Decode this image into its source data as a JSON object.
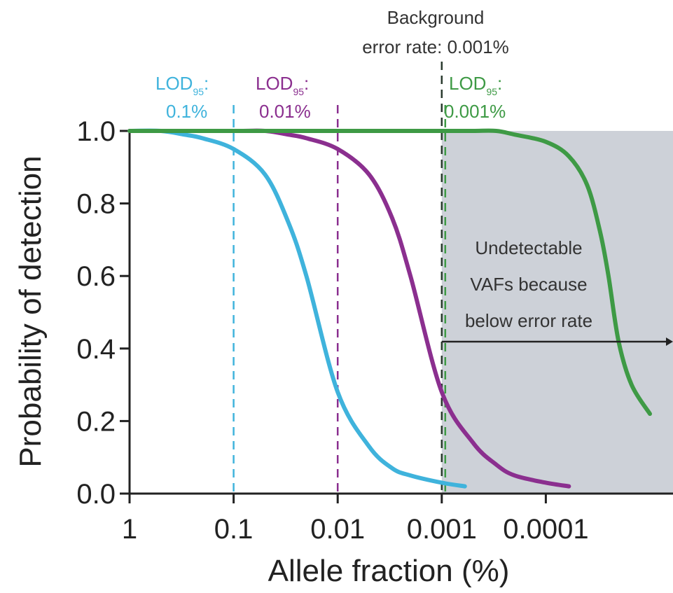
{
  "chart_data": {
    "type": "line",
    "xlabel": "Allele fraction (%)",
    "ylabel": "Probability of detection",
    "x_scale": "log-reversed",
    "x_ticks": [
      1,
      0.1,
      0.01,
      0.001,
      0.0001
    ],
    "x_tick_labels": [
      "1",
      "0.1",
      "0.01",
      "0.001",
      "0.0001"
    ],
    "xlim": [
      1,
      1e-05
    ],
    "y_ticks": [
      0,
      0.2,
      0.4,
      0.6,
      0.8,
      1.0
    ],
    "y_tick_labels": [
      "0.0",
      "0.2",
      "0.4",
      "0.6",
      "0.8",
      "1.0"
    ],
    "ylim": [
      0,
      1
    ],
    "grid": false,
    "series": [
      {
        "color": "#3FB3DC",
        "lod": 0.1,
        "x": [
          1,
          0.5,
          0.3,
          0.2,
          0.1,
          0.05,
          0.03,
          0.02,
          0.01,
          0.005,
          0.003,
          0.002,
          0.001,
          0.0006
        ],
        "y": [
          1.0,
          1.0,
          0.99,
          0.98,
          0.95,
          0.88,
          0.75,
          0.6,
          0.28,
          0.13,
          0.07,
          0.05,
          0.03,
          0.02
        ]
      },
      {
        "color": "#8B2F8F",
        "lod": 0.01,
        "x": [
          1,
          0.1,
          0.05,
          0.03,
          0.02,
          0.01,
          0.005,
          0.003,
          0.002,
          0.001,
          0.0005,
          0.0003,
          0.0002,
          0.0001,
          6e-05
        ],
        "y": [
          1.0,
          1.0,
          1.0,
          0.99,
          0.98,
          0.95,
          0.88,
          0.76,
          0.6,
          0.28,
          0.14,
          0.08,
          0.05,
          0.03,
          0.02
        ]
      },
      {
        "color": "#3E9A45",
        "lod": 0.001,
        "x": [
          1,
          0.001,
          0.0005,
          0.0003,
          0.0002,
          0.0001,
          6e-05,
          4e-05,
          3e-05,
          2.5e-05,
          2e-05,
          1.5e-05,
          1e-05
        ],
        "y": [
          1.0,
          1.0,
          1.0,
          1.0,
          0.99,
          0.97,
          0.93,
          0.85,
          0.72,
          0.6,
          0.42,
          0.3,
          0.22
        ]
      }
    ],
    "background_error_rate": 0.001,
    "annotations": {
      "background_line1": "Background",
      "background_line2": "error rate: 0.001%",
      "lod_blue_main": "LOD",
      "lod_blue_sub": "95",
      "lod_blue_colon": ":",
      "lod_blue_value": "0.1%",
      "lod_purple_main": "LOD",
      "lod_purple_sub": "95",
      "lod_purple_colon": ":",
      "lod_purple_value": "0.01%",
      "lod_green_main": "LOD",
      "lod_green_sub": "95",
      "lod_green_colon": ":",
      "lod_green_value": "0.001%",
      "undetectable_line1": "Undetectable",
      "undetectable_line2": "VAFs because",
      "undetectable_line3": "below error rate"
    },
    "colors": {
      "blue": "#3FB3DC",
      "purple": "#8B2F8F",
      "green": "#3E9A45",
      "shade": "#CDD1D8",
      "axis": "#222222",
      "background_line": "#2A3A2E"
    }
  }
}
